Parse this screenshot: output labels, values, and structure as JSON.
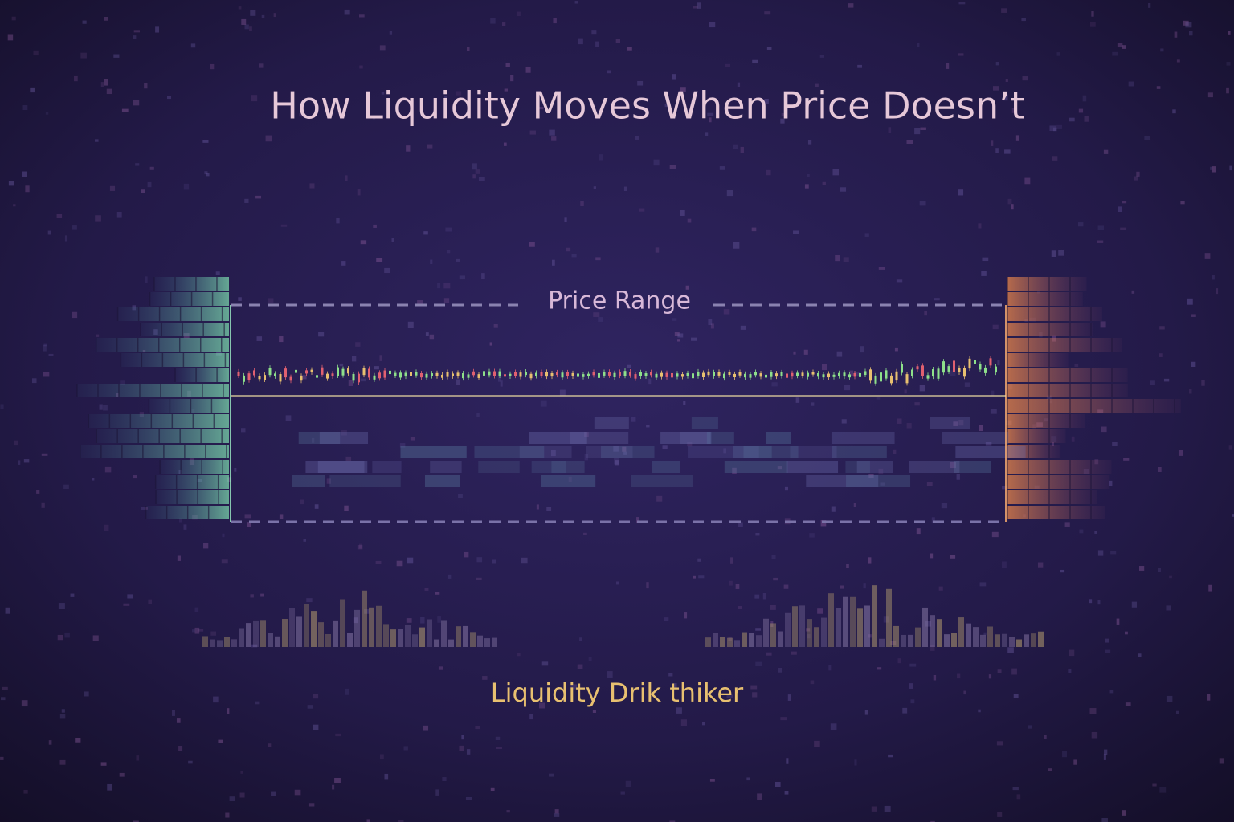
{
  "title": "How Liquidity Moves When Price Doesn’t",
  "range_label": "Price Range",
  "caption": "Liquidity Drik thiker"
}
